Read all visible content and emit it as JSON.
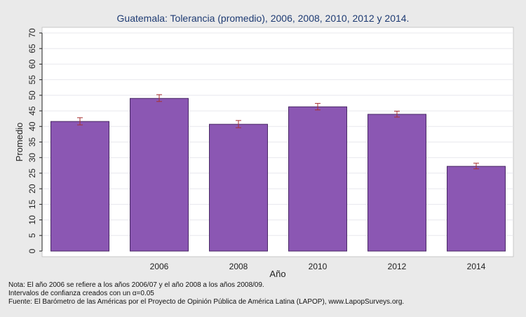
{
  "chart_data": {
    "type": "bar",
    "title": "Guatemala: Tolerancia (promedio), 2006, 2008, 2010, 2012 y 2014.",
    "xlabel": "Año",
    "ylabel": "Promedio",
    "categories": [
      "",
      "2006",
      "2008",
      "2010",
      "2012",
      "2014"
    ],
    "values": [
      41.6,
      49.0,
      40.7,
      46.3,
      43.9,
      27.2
    ],
    "error_low": [
      40.5,
      48.0,
      39.6,
      45.3,
      43.0,
      26.4
    ],
    "error_high": [
      42.8,
      50.2,
      41.9,
      47.4,
      44.9,
      28.2
    ],
    "ylim": [
      0,
      70
    ],
    "yticks": [
      0,
      5,
      10,
      15,
      20,
      25,
      30,
      35,
      40,
      45,
      50,
      55,
      60,
      65,
      70
    ],
    "grid": true,
    "colors": {
      "bar": "#8b57b3",
      "bar_edge": "#4a2a66",
      "error": "#a83232",
      "plot_bg": "#ffffff",
      "figure_bg": "#eaeaea",
      "grid": "#e8e8ee",
      "title": "#1e3b73"
    }
  },
  "notes": [
    "Nota: El año 2006 se refiere a los años 2006/07 y el año 2008 a los años 2008/09.",
    "Intervalos de confianza creados con un α=0.05",
    "Fuente: El Barómetro de las Américas por el Proyecto de Opinión Pública de América Latina (LAPOP), www.LapopSurveys.org."
  ]
}
